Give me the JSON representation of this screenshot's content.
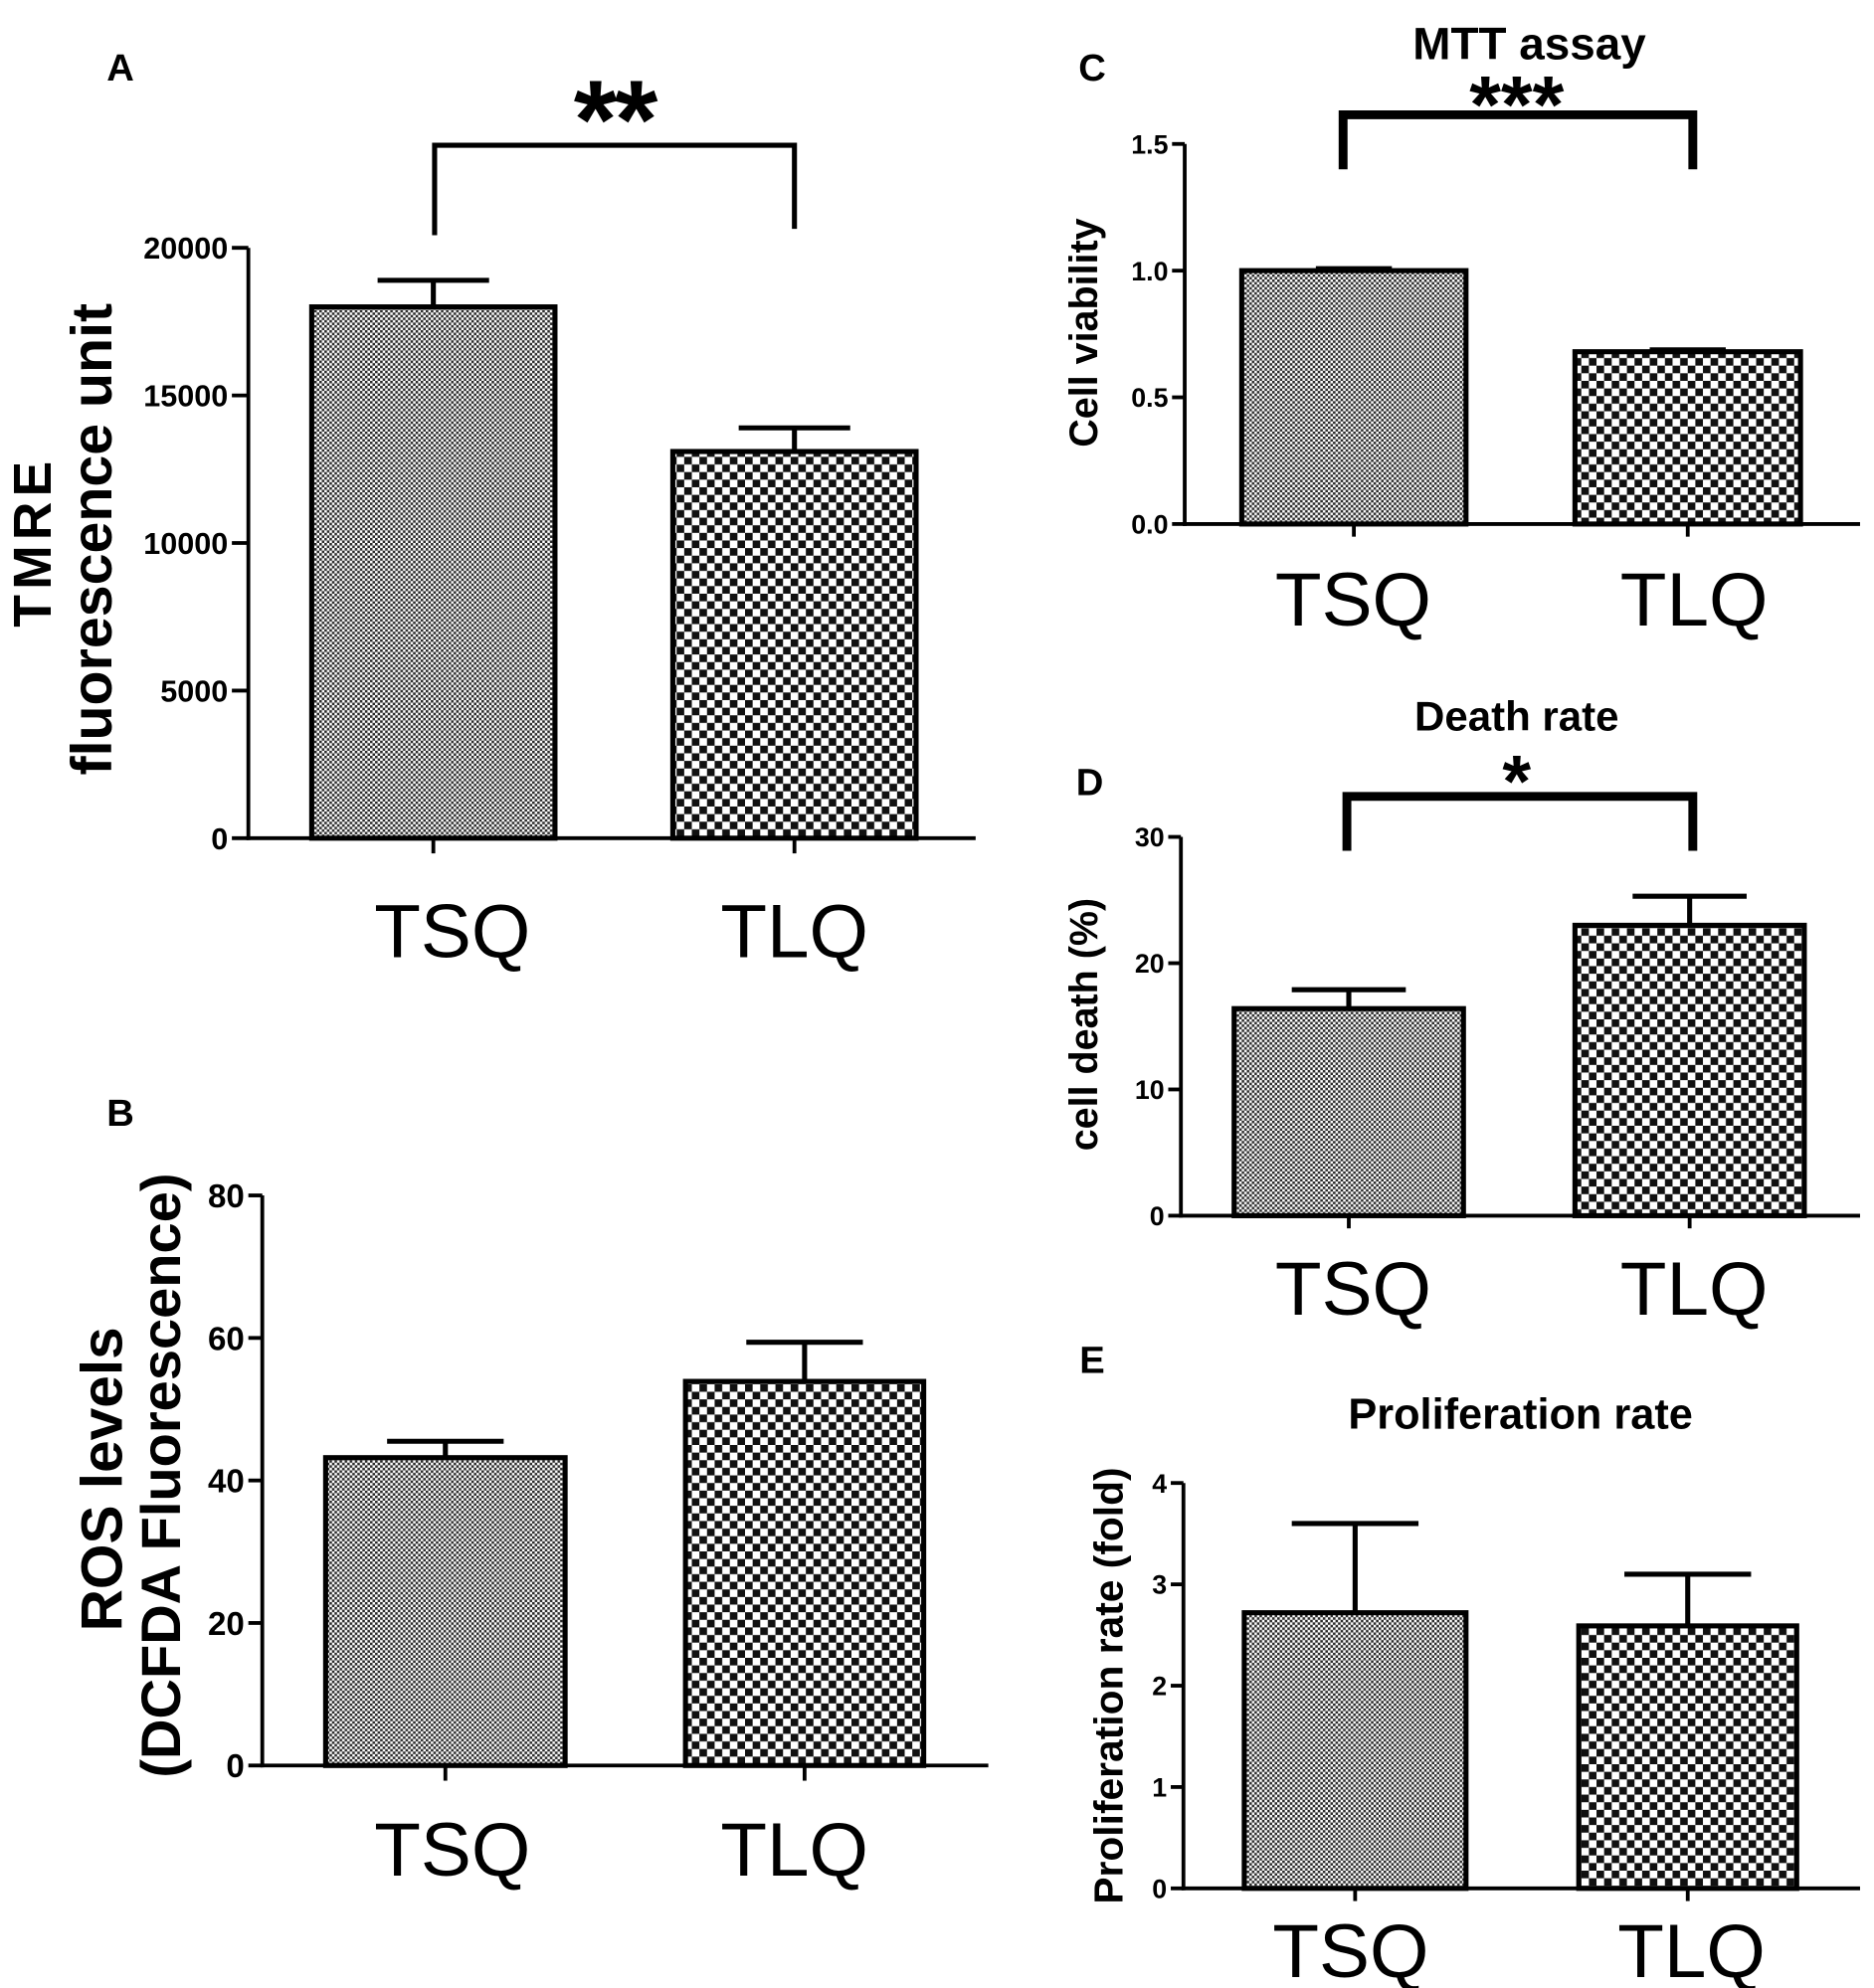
{
  "chart_data": [
    {
      "panel": "A",
      "type": "bar",
      "ylabel": [
        "TMRE",
        "fluorescence unit"
      ],
      "categories": [
        "TSQ",
        "TLQ"
      ],
      "values": [
        18000,
        13100
      ],
      "errors": [
        900,
        800
      ],
      "ylim": [
        0,
        20000
      ],
      "yticks": [
        0,
        5000,
        10000,
        15000,
        20000
      ],
      "ytick_labels": [
        "0",
        "5000",
        "10000",
        "15000",
        "20000"
      ],
      "significance": {
        "label": "**",
        "between": [
          0,
          1
        ]
      },
      "grid": false
    },
    {
      "panel": "B",
      "type": "bar",
      "ylabel": [
        "ROS levels",
        "(DCFDA Fluorescence)"
      ],
      "categories": [
        "TSQ",
        "TLQ"
      ],
      "values": [
        43.2,
        53.9
      ],
      "errors": [
        2.3,
        5.5
      ],
      "ylim": [
        0,
        80
      ],
      "yticks": [
        0,
        20,
        40,
        60,
        80
      ],
      "ytick_labels": [
        "0",
        "20",
        "40",
        "60",
        "80"
      ],
      "grid": false
    },
    {
      "panel": "C",
      "type": "bar",
      "title": "MTT assay",
      "ylabel": [
        "Cell viability"
      ],
      "categories": [
        "TSQ",
        "TLQ"
      ],
      "values": [
        1.0,
        0.68
      ],
      "errors": [
        0.01,
        0.01
      ],
      "ylim": [
        0,
        1.5
      ],
      "yticks": [
        0,
        0.5,
        1.0,
        1.5
      ],
      "ytick_labels": [
        "0.0",
        "0.5",
        "1.0",
        "1.5"
      ],
      "significance": {
        "label": "***",
        "between": [
          0,
          1
        ]
      },
      "grid": false
    },
    {
      "panel": "D",
      "type": "bar",
      "title": "Death rate",
      "ylabel": [
        "cell death (%)"
      ],
      "categories": [
        "TSQ",
        "TLQ"
      ],
      "values": [
        16.4,
        23.0
      ],
      "errors": [
        1.5,
        2.3
      ],
      "ylim": [
        0,
        30
      ],
      "yticks": [
        0,
        10,
        20,
        30
      ],
      "ytick_labels": [
        "0",
        "10",
        "20",
        "30"
      ],
      "significance": {
        "label": "*",
        "between": [
          0,
          1
        ]
      },
      "grid": false
    },
    {
      "panel": "E",
      "type": "bar",
      "title": "Proliferation rate",
      "ylabel": [
        "Proliferation rate (fold)"
      ],
      "categories": [
        "TSQ",
        "TLQ"
      ],
      "values": [
        2.72,
        2.59
      ],
      "errors": [
        0.88,
        0.51
      ],
      "ylim": [
        0,
        4
      ],
      "yticks": [
        0,
        1,
        2,
        3,
        4
      ],
      "ytick_labels": [
        "0",
        "1",
        "2",
        "3",
        "4"
      ],
      "grid": false
    }
  ]
}
